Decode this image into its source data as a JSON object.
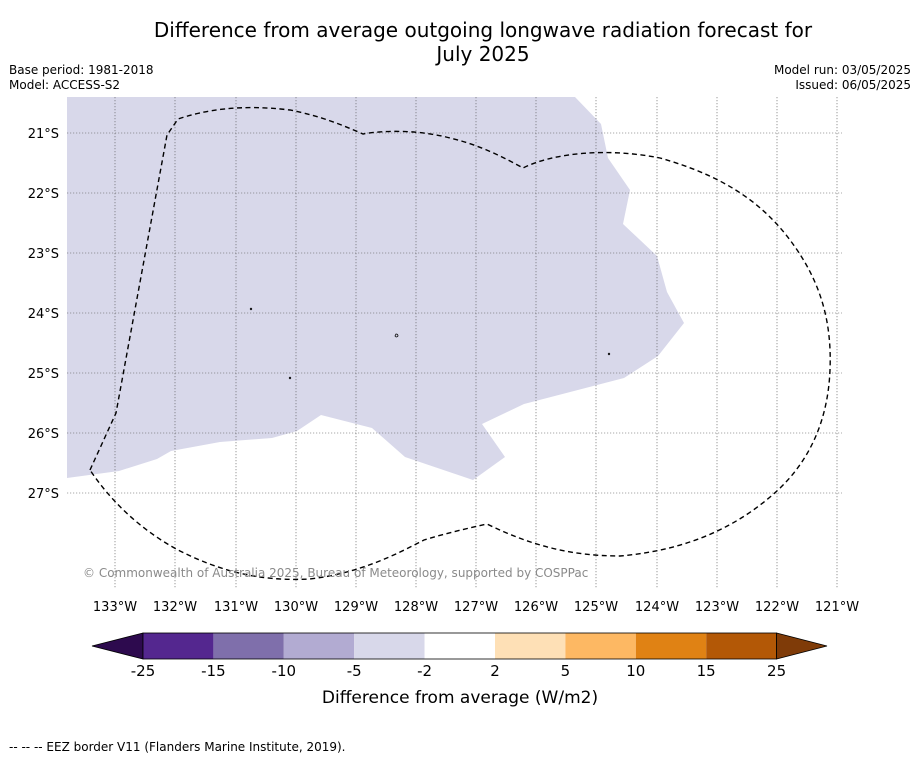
{
  "header": {
    "title_line1": "Difference from average outgoing longwave radiation forecast for",
    "title_line2": "July 2025",
    "base_period": "Base period: 1981-2018",
    "model": "Model: ACCESS-S2",
    "model_run": "Model run: 03/05/2025",
    "issued": "Issued: 06/05/2025"
  },
  "map": {
    "lat_labels": [
      "21°S",
      "22°S",
      "23°S",
      "24°S",
      "25°S",
      "26°S",
      "27°S"
    ],
    "lon_labels": [
      "133°W",
      "132°W",
      "131°W",
      "130°W",
      "129°W",
      "128°W",
      "127°W",
      "126°W",
      "125°W",
      "124°W",
      "123°W",
      "122°W",
      "121°W"
    ],
    "anomaly_fill_color": "#d8d8ea",
    "copyright": "© Commonwealth of Australia 2025, Bureau of Meteorology, supported by COSPPac"
  },
  "colorbar": {
    "ticks": [
      "-25",
      "-15",
      "-10",
      "-5",
      "-2",
      "2",
      "5",
      "10",
      "15",
      "25"
    ],
    "colors": [
      "#2d0a4e",
      "#54278f",
      "#7f6fab",
      "#b2abd2",
      "#d8d8ea",
      "#ffffff",
      "#fee0b6",
      "#fdb863",
      "#e08214",
      "#b35806",
      "#7f3b08"
    ],
    "label": "Difference from average (W/m2)"
  },
  "footer": {
    "legend_text": "--  --  -- EEZ border V11 (Flanders Marine Institute, 2019)."
  }
}
